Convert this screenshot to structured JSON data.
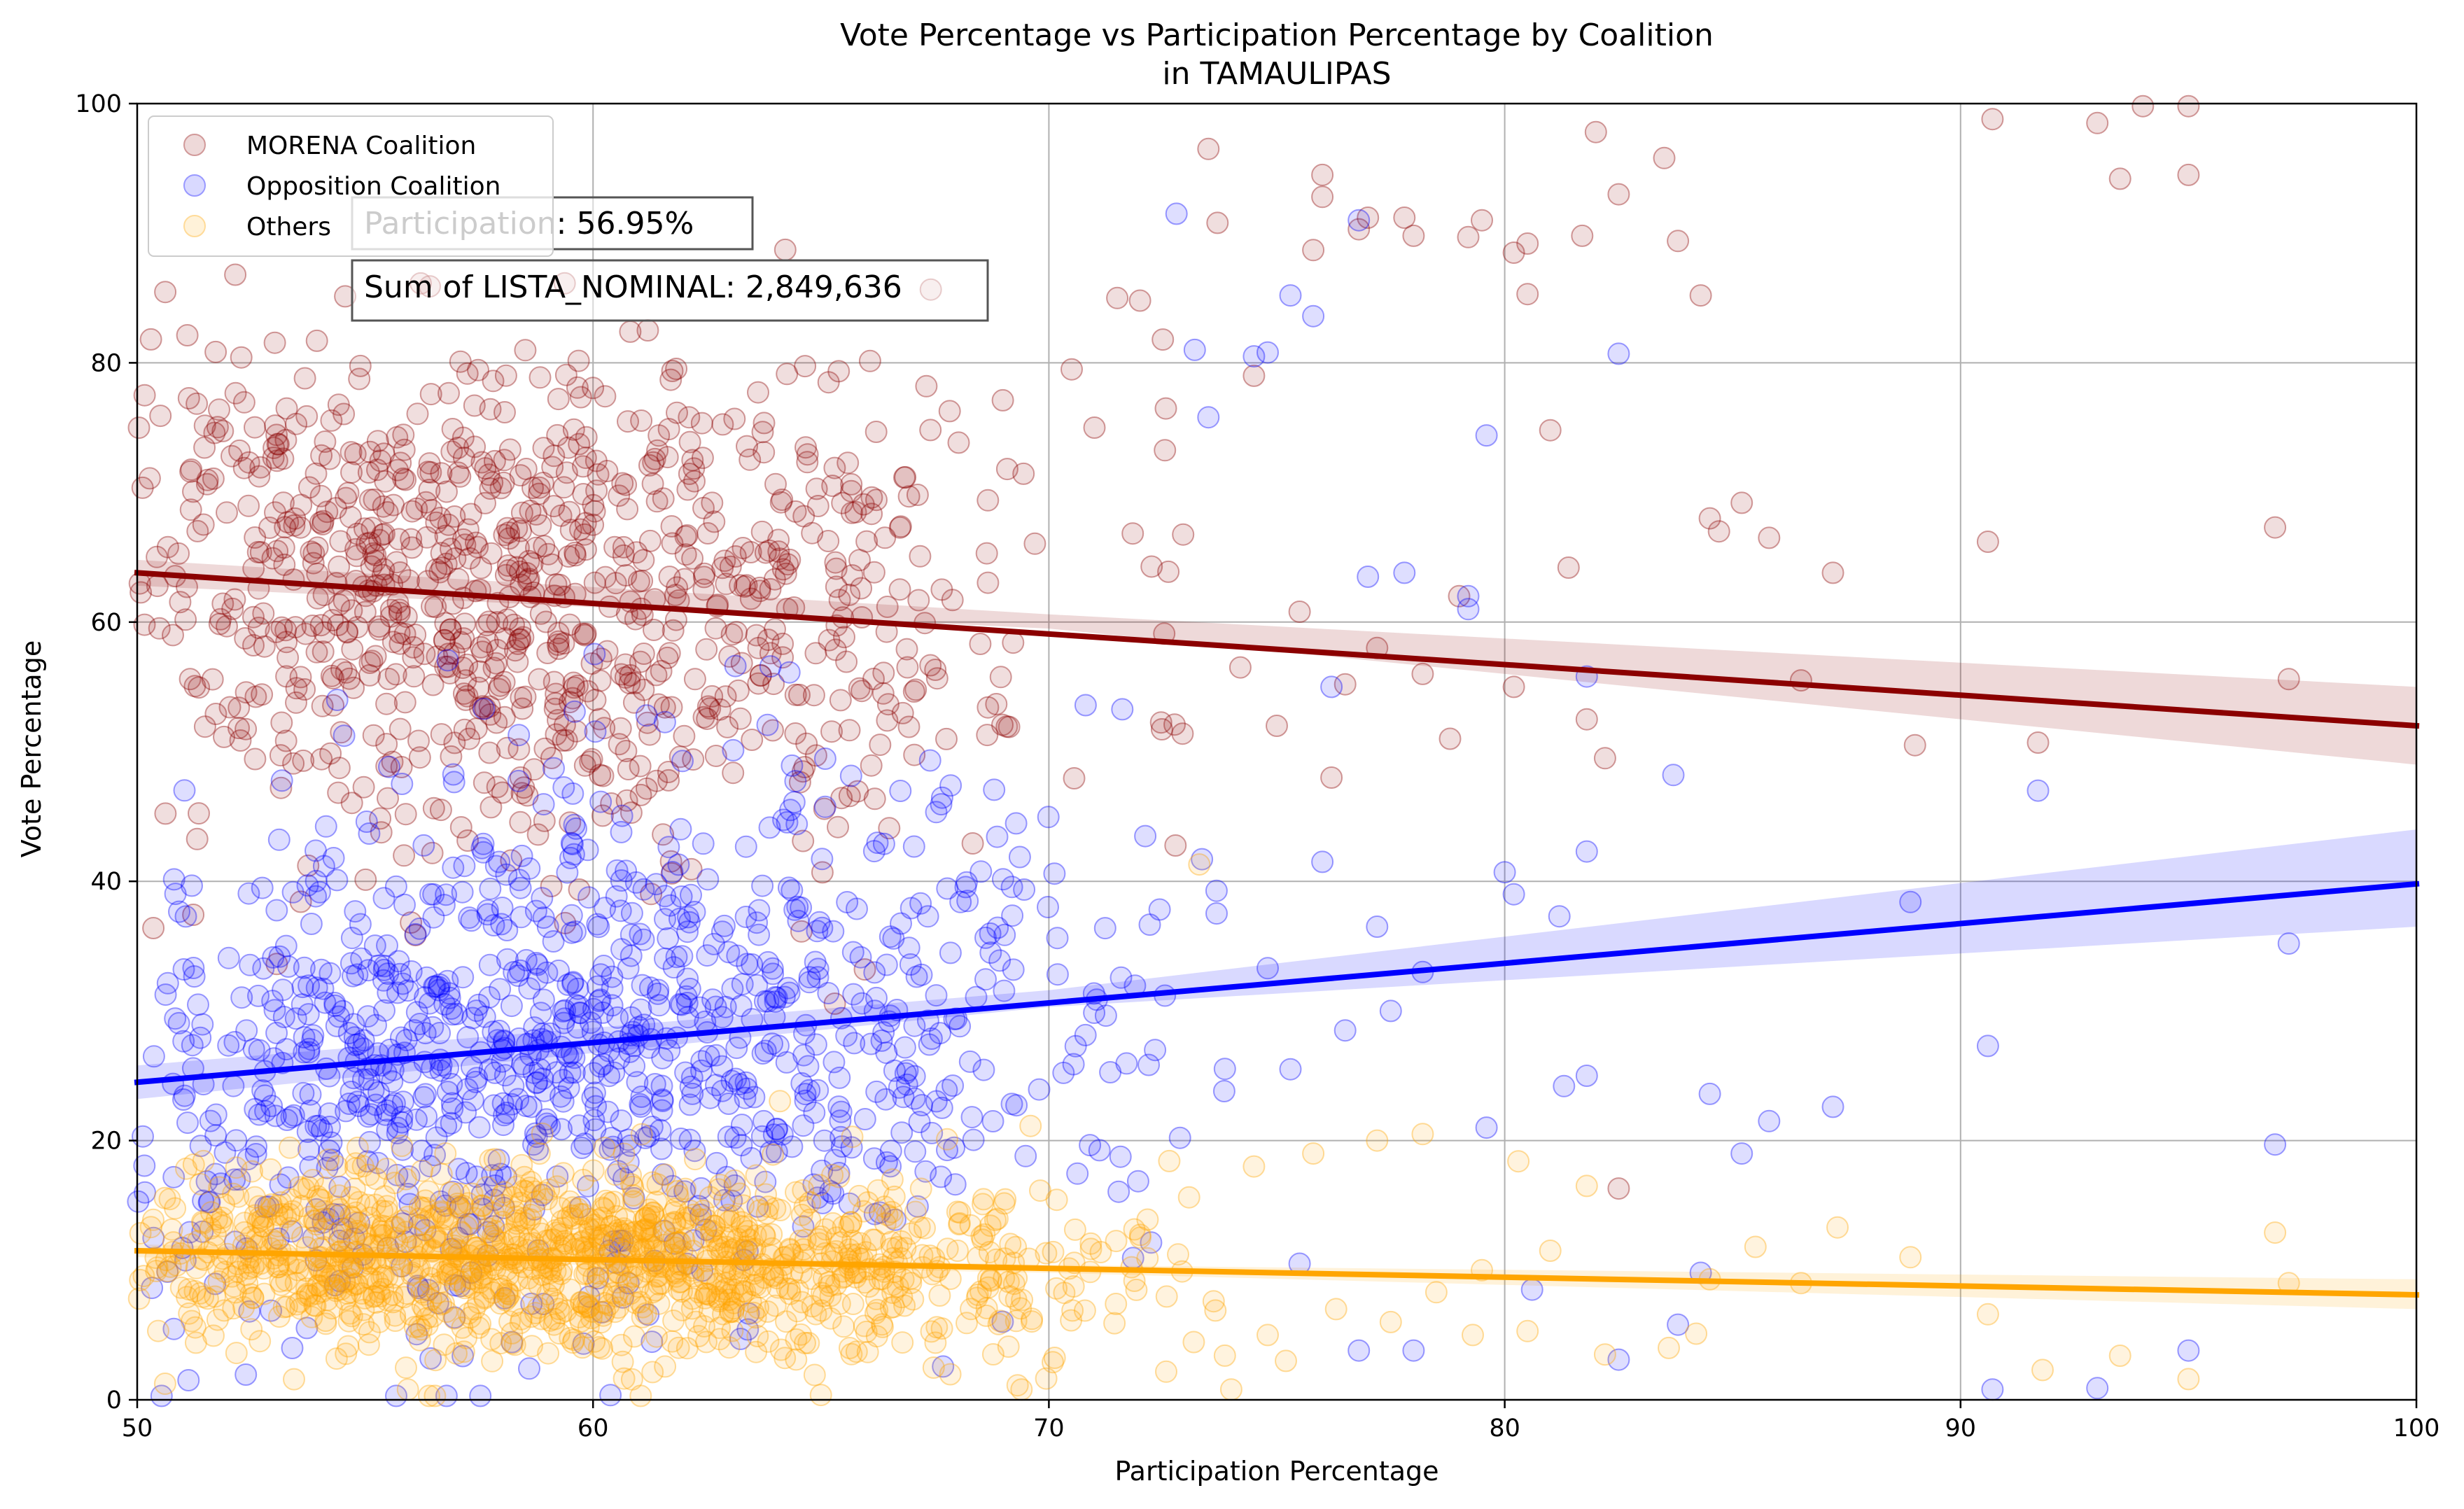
{
  "chart_data": {
    "type": "scatter",
    "title": "Vote Percentage vs Participation Percentage by Coalition",
    "subtitle": "in TAMAULIPAS",
    "xlabel": "Participation Percentage",
    "ylabel": "Vote Percentage",
    "xlim": [
      50,
      100
    ],
    "ylim": [
      0,
      100
    ],
    "x_ticks": [
      "50",
      "60",
      "70",
      "80",
      "90",
      "100"
    ],
    "y_ticks": [
      "0",
      "20",
      "40",
      "60",
      "80",
      "100"
    ],
    "grid": true,
    "legend_position": "top-left",
    "annotations": [
      "Participation: 56.95%",
      "Sum of LISTA_NOMINAL: 2,849,636"
    ],
    "series": [
      {
        "name": "MORENA Coalition",
        "color": "#8b0000",
        "trend": {
          "x": [
            50,
            100
          ],
          "y": [
            63.8,
            52.0
          ]
        },
        "trend_band": {
          "x": [
            50,
            70,
            100
          ],
          "lower": [
            62.8,
            59.5,
            49.0
          ],
          "upper": [
            64.8,
            60.6,
            55.0
          ]
        },
        "cluster": {
          "n": 900,
          "x_peak": 57,
          "x_spread_left": 4.5,
          "x_spread_right": 6.5,
          "y_sd": 9.5,
          "x_range": [
            50,
            73
          ]
        },
        "points": [
          [
            70.5,
            79.5
          ],
          [
            71.0,
            75.0
          ],
          [
            71.5,
            85.0
          ],
          [
            72.0,
            84.8
          ],
          [
            72.5,
            81.8
          ],
          [
            73.5,
            96.5
          ],
          [
            73.7,
            90.8
          ],
          [
            74.5,
            79.0
          ],
          [
            75.8,
            88.7
          ],
          [
            76.0,
            94.5
          ],
          [
            76.0,
            92.8
          ],
          [
            76.8,
            90.3
          ],
          [
            77.0,
            91.2
          ],
          [
            77.8,
            91.2
          ],
          [
            78.0,
            89.8
          ],
          [
            79.2,
            89.7
          ],
          [
            79.5,
            91.0
          ],
          [
            80.2,
            88.5
          ],
          [
            80.5,
            89.2
          ],
          [
            80.5,
            85.3
          ],
          [
            81.0,
            74.8
          ],
          [
            81.4,
            64.2
          ],
          [
            81.7,
            89.8
          ],
          [
            82.0,
            97.8
          ],
          [
            82.5,
            93.0
          ],
          [
            83.5,
            95.8
          ],
          [
            83.8,
            89.4
          ],
          [
            84.3,
            85.2
          ],
          [
            84.5,
            68.0
          ],
          [
            84.7,
            67.0
          ],
          [
            85.2,
            69.2
          ],
          [
            85.8,
            66.5
          ],
          [
            86.5,
            55.5
          ],
          [
            87.2,
            63.8
          ],
          [
            89.0,
            50.5
          ],
          [
            90.6,
            66.2
          ],
          [
            90.7,
            98.8
          ],
          [
            91.7,
            50.7
          ],
          [
            93.0,
            98.5
          ],
          [
            93.5,
            94.2
          ],
          [
            94.0,
            99.8
          ],
          [
            95.0,
            99.8
          ],
          [
            95.0,
            94.5
          ],
          [
            96.9,
            67.3
          ],
          [
            97.2,
            55.6
          ],
          [
            75.5,
            60.8
          ],
          [
            76.5,
            55.2
          ],
          [
            78.2,
            56.0
          ],
          [
            78.8,
            51.0
          ],
          [
            80.2,
            55.0
          ],
          [
            81.8,
            52.5
          ],
          [
            82.2,
            49.5
          ],
          [
            74.2,
            56.5
          ],
          [
            75.0,
            52.0
          ],
          [
            77.2,
            58.0
          ],
          [
            79.0,
            62.0
          ],
          [
            76.2,
            48.0
          ],
          [
            82.5,
            16.3
          ]
        ]
      },
      {
        "name": "Opposition Coalition",
        "color": "#0000ff",
        "trend": {
          "x": [
            50,
            100
          ],
          "y": [
            24.5,
            39.8
          ]
        },
        "trend_band": {
          "x": [
            50,
            70,
            100
          ],
          "lower": [
            23.2,
            30.3,
            36.5
          ],
          "upper": [
            25.8,
            31.6,
            44.0
          ]
        },
        "cluster": {
          "n": 1000,
          "x_peak": 58,
          "x_spread_left": 5,
          "x_spread_right": 7,
          "y_sd": 10.5,
          "x_range": [
            50,
            74
          ]
        },
        "points": [
          [
            72.8,
            91.5
          ],
          [
            73.2,
            81.0
          ],
          [
            73.5,
            75.8
          ],
          [
            74.5,
            80.5
          ],
          [
            74.8,
            80.8
          ],
          [
            75.3,
            85.2
          ],
          [
            75.8,
            83.6
          ],
          [
            76.8,
            91.0
          ],
          [
            79.6,
            74.4
          ],
          [
            82.5,
            80.7
          ],
          [
            79.2,
            61.0
          ],
          [
            77.8,
            63.8
          ],
          [
            76.2,
            55.0
          ],
          [
            77.0,
            63.5
          ],
          [
            79.2,
            62.0
          ],
          [
            81.8,
            55.8
          ],
          [
            80.0,
            40.7
          ],
          [
            81.2,
            37.3
          ],
          [
            81.8,
            42.3
          ],
          [
            83.7,
            48.2
          ],
          [
            88.9,
            38.4
          ],
          [
            91.7,
            47.0
          ],
          [
            97.2,
            35.2
          ],
          [
            84.5,
            23.6
          ],
          [
            85.8,
            21.5
          ],
          [
            87.2,
            22.6
          ],
          [
            79.6,
            21.0
          ],
          [
            81.3,
            24.2
          ],
          [
            81.8,
            25.0
          ],
          [
            90.6,
            27.3
          ],
          [
            96.9,
            19.7
          ],
          [
            85.2,
            19.0
          ],
          [
            95.0,
            3.8
          ],
          [
            93.0,
            0.9
          ],
          [
            90.7,
            0.8
          ],
          [
            80.6,
            8.5
          ],
          [
            83.8,
            5.8
          ],
          [
            82.5,
            3.1
          ],
          [
            84.3,
            9.8
          ],
          [
            76.8,
            3.8
          ],
          [
            78.0,
            3.8
          ],
          [
            75.5,
            10.5
          ],
          [
            76.5,
            28.5
          ],
          [
            77.5,
            30.0
          ],
          [
            78.2,
            33.0
          ],
          [
            80.2,
            39.0
          ],
          [
            76.0,
            41.5
          ],
          [
            74.8,
            33.3
          ],
          [
            75.3,
            25.5
          ],
          [
            77.2,
            36.5
          ]
        ]
      },
      {
        "name": "Others",
        "color": "#ffa500",
        "trend": {
          "x": [
            50,
            100
          ],
          "y": [
            11.5,
            8.1
          ]
        },
        "trend_band": {
          "x": [
            50,
            70,
            100
          ],
          "lower": [
            11.0,
            9.8,
            7.0
          ],
          "upper": [
            12.0,
            10.4,
            9.3
          ]
        },
        "cluster": {
          "n": 1200,
          "x_peak": 58,
          "x_spread_left": 5,
          "x_spread_right": 7,
          "y_sd": 3.5,
          "x_range": [
            50,
            74
          ]
        },
        "points": [
          [
            74.5,
            18.0
          ],
          [
            75.8,
            19.0
          ],
          [
            77.2,
            20.0
          ],
          [
            78.2,
            20.5
          ],
          [
            80.3,
            18.4
          ],
          [
            81.8,
            16.5
          ],
          [
            84.5,
            9.3
          ],
          [
            85.5,
            11.8
          ],
          [
            86.5,
            9.0
          ],
          [
            87.3,
            13.3
          ],
          [
            88.9,
            11.0
          ],
          [
            90.6,
            6.6
          ],
          [
            91.8,
            2.3
          ],
          [
            93.5,
            3.4
          ],
          [
            95.0,
            1.6
          ],
          [
            96.9,
            12.9
          ],
          [
            97.2,
            9.0
          ],
          [
            74.8,
            5.0
          ],
          [
            75.2,
            3.0
          ],
          [
            76.3,
            7.0
          ],
          [
            77.5,
            6.0
          ],
          [
            78.5,
            8.3
          ],
          [
            79.3,
            5.0
          ],
          [
            80.5,
            5.3
          ],
          [
            81.0,
            11.5
          ],
          [
            82.2,
            3.5
          ],
          [
            83.6,
            4.0
          ],
          [
            84.2,
            5.1
          ],
          [
            79.5,
            10.0
          ],
          [
            74.0,
            0.8
          ],
          [
            73.3,
            41.3
          ],
          [
            69.4,
            0.8
          ]
        ]
      }
    ]
  }
}
